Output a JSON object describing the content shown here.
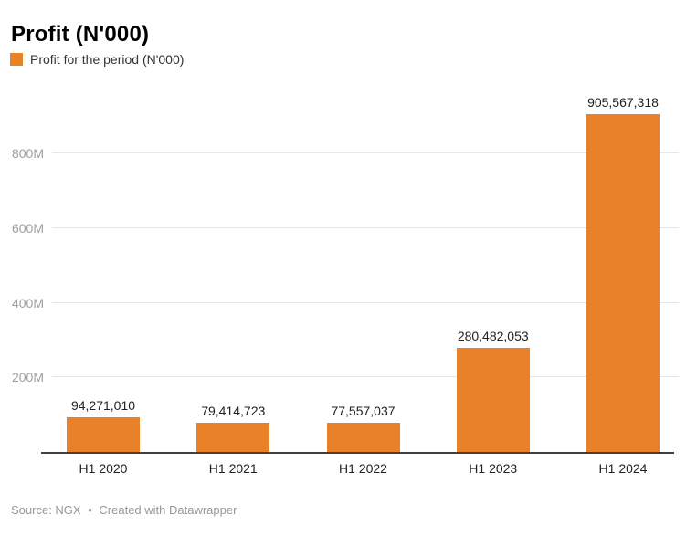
{
  "title": "Profit (N'000)",
  "legend": {
    "label": "Profit for the period (N'000)"
  },
  "footer": {
    "source": "Source: NGX",
    "separator": "•",
    "credit": "Created with Datawrapper"
  },
  "colors": {
    "accent": "#E88127",
    "grid": "#e6e6e6",
    "axis_line": "#3f3f3f",
    "tick_label": "#9f9f9f",
    "value_label": "#222222",
    "footer_text": "#979797"
  },
  "chart_data": {
    "type": "bar",
    "title": "Profit (N'000)",
    "series_name": "Profit for the period (N'000)",
    "categories": [
      "H1 2020",
      "H1 2021",
      "H1 2022",
      "H1 2023",
      "H1 2024"
    ],
    "values": [
      94271010,
      79414723,
      77557037,
      280482053,
      905567318
    ],
    "value_labels": [
      "94,271,010",
      "79,414,723",
      "77,557,037",
      "280,482,053",
      "905,567,318"
    ],
    "y_ticks": [
      {
        "label": "200M",
        "value": 200000000
      },
      {
        "label": "400M",
        "value": 400000000
      },
      {
        "label": "600M",
        "value": 600000000
      },
      {
        "label": "800M",
        "value": 800000000
      }
    ],
    "ylim": [
      0,
      920000000
    ],
    "grid": "horizontal",
    "legend_position": "top-left",
    "bar_color": "#E88127",
    "xlabel": "",
    "ylabel": "",
    "source": "NGX",
    "credit": "Created with Datawrapper"
  }
}
